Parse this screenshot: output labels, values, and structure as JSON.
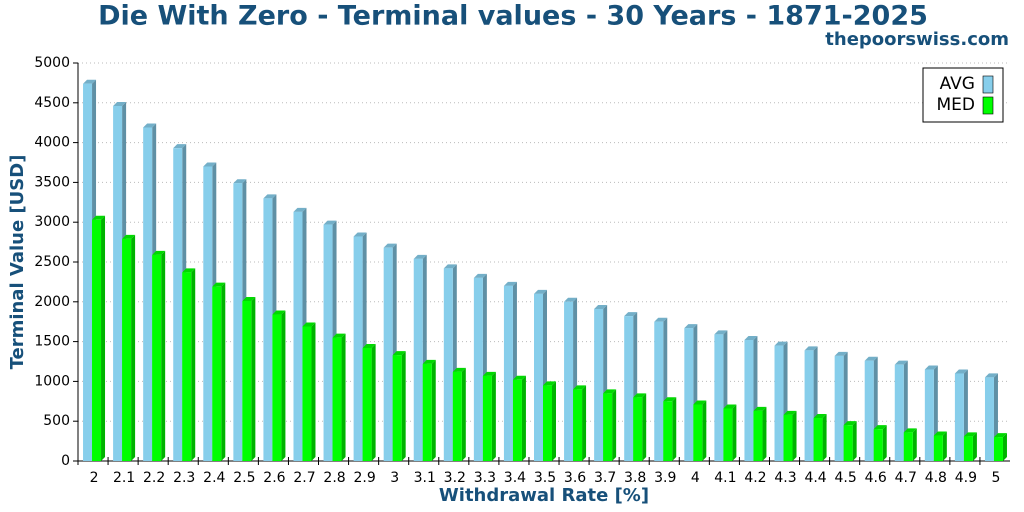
{
  "chart_data": {
    "type": "bar3d",
    "title": "Die With Zero - Terminal values - 30 Years - 1871-2025",
    "subtitle": "thepoorswiss.com",
    "x_label": "Withdrawal Rate [%]",
    "y_label": "Terminal Value [USD]",
    "categories": [
      "2",
      "2.1",
      "2.2",
      "2.3",
      "2.4",
      "2.5",
      "2.6",
      "2.7",
      "2.8",
      "2.9",
      "3",
      "3.1",
      "3.2",
      "3.3",
      "3.4",
      "3.5",
      "3.6",
      "3.7",
      "3.8",
      "3.9",
      "4",
      "4.1",
      "4.2",
      "4.3",
      "4.4",
      "4.5",
      "4.6",
      "4.7",
      "4.8",
      "4.9",
      "5"
    ],
    "series": [
      {
        "name": "AVG",
        "color": "#87ceeb",
        "values": [
          4740,
          4460,
          4190,
          3930,
          3700,
          3490,
          3300,
          3130,
          2970,
          2820,
          2680,
          2540,
          2420,
          2300,
          2200,
          2100,
          2000,
          1910,
          1820,
          1750,
          1670,
          1590,
          1520,
          1450,
          1390,
          1320,
          1260,
          1210,
          1150,
          1100,
          1050
        ]
      },
      {
        "name": "MED",
        "color": "#00ff00",
        "values": [
          3030,
          2790,
          2590,
          2370,
          2190,
          2010,
          1840,
          1690,
          1550,
          1420,
          1330,
          1220,
          1120,
          1070,
          1020,
          950,
          900,
          850,
          800,
          750,
          710,
          660,
          630,
          580,
          540,
          450,
          400,
          360,
          320,
          310,
          300
        ]
      }
    ],
    "ylim": [
      0,
      5000
    ],
    "yticks": [
      0,
      500,
      1000,
      1500,
      2000,
      2500,
      3000,
      3500,
      4000,
      4500,
      5000
    ],
    "grid": true,
    "legend": "upper right"
  }
}
